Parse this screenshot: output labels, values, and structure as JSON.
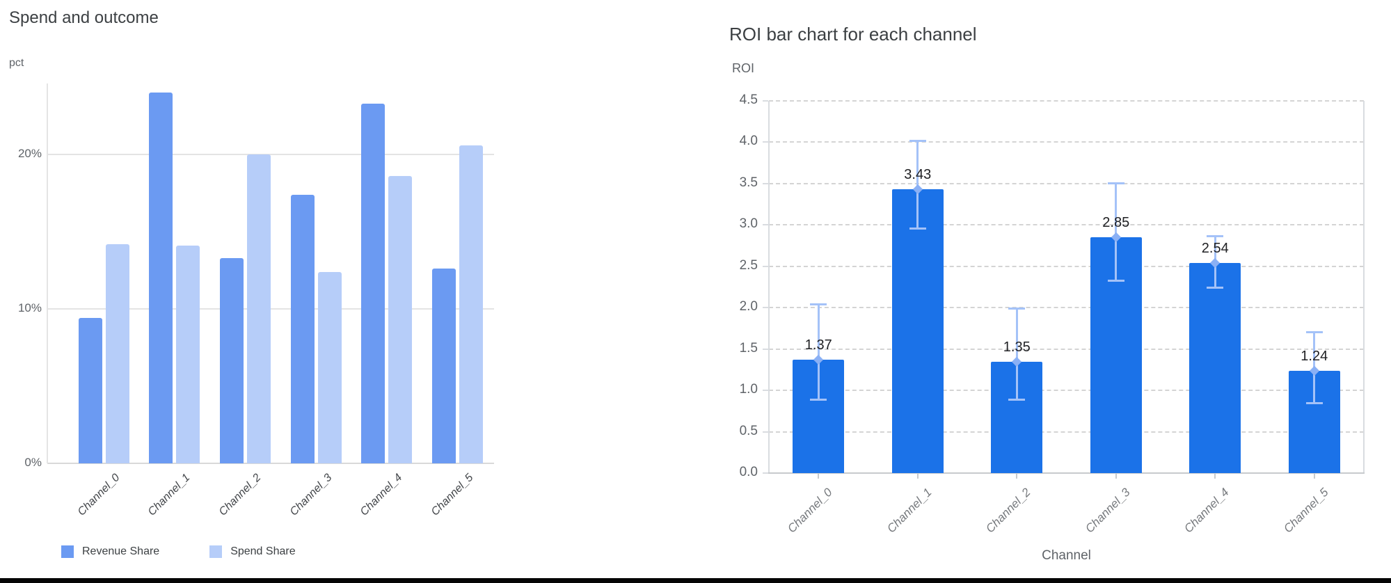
{
  "page": {
    "background": "#ffffff",
    "bottom_border_color": "#050505"
  },
  "chart_data": [
    {
      "id": "spend_and_outcome",
      "type": "bar",
      "title": "Spend and outcome",
      "ylabel": "pct",
      "xlabel": "",
      "categories": [
        "Channel_0",
        "Channel_1",
        "Channel_2",
        "Channel_3",
        "Channel_4",
        "Channel_5"
      ],
      "series": [
        {
          "name": "Revenue Share",
          "color": "#6b9af2",
          "values": [
            9.4,
            24.0,
            13.3,
            17.4,
            23.3,
            12.6
          ]
        },
        {
          "name": "Spend Share",
          "color": "#b6cdf9",
          "values": [
            14.2,
            14.1,
            20.0,
            12.4,
            18.6,
            20.6
          ]
        }
      ],
      "unit": "%",
      "y_ticks": [
        {
          "label": "0%",
          "value": 0
        },
        {
          "label": "10%",
          "value": 10
        },
        {
          "label": "20%",
          "value": 20
        }
      ],
      "ylim": [
        0,
        24.6
      ],
      "grid": "solid horizontal, light gray",
      "legend_position": "bottom-left",
      "x_label_style": "rotated -45deg italic dark gray",
      "colors": {
        "gridline": "#e4e4e4",
        "baseline": "#d9d9d9",
        "spine": "#e4e4e4",
        "tick_text": "#5f6368",
        "x_label_text": "#424549",
        "title_text": "#3c4043"
      }
    },
    {
      "id": "roi_by_channel",
      "type": "bar",
      "title": "ROI bar chart for each channel",
      "ylabel": "ROI",
      "xlabel": "Channel",
      "categories": [
        "Channel_0",
        "Channel_1",
        "Channel_2",
        "Channel_3",
        "Channel_4",
        "Channel_5"
      ],
      "values": [
        1.37,
        3.43,
        1.35,
        2.85,
        2.54,
        1.24
      ],
      "value_labels": [
        "1.37",
        "3.43",
        "1.35",
        "2.85",
        "2.54",
        "1.24"
      ],
      "error_low": [
        0.88,
        2.95,
        0.88,
        2.32,
        2.24,
        0.84
      ],
      "error_high": [
        2.04,
        4.02,
        1.99,
        3.51,
        2.87,
        1.71
      ],
      "y_ticks": [
        "0.0",
        "0.5",
        "1.0",
        "1.5",
        "2.0",
        "2.5",
        "3.0",
        "3.5",
        "4.0",
        "4.5"
      ],
      "y_tick_step": 0.5,
      "ylim": [
        0,
        4.5
      ],
      "grid": "dashed horizontal, light gray",
      "legend_position": "none",
      "x_label_style": "rotated -45deg italic gray",
      "colors": {
        "bar": "#1b72e8",
        "error_bar": "#a4c2f8",
        "error_marker": "#8ab0f5",
        "dashed_grid": "#d4d4d4",
        "spine": "#d9dce0",
        "bottom_spine": "#c7cacd",
        "tick_text": "#5f6368",
        "x_label_text": "#76797d",
        "title_text": "#3c4043",
        "value_label_text": "#202124"
      }
    }
  ]
}
